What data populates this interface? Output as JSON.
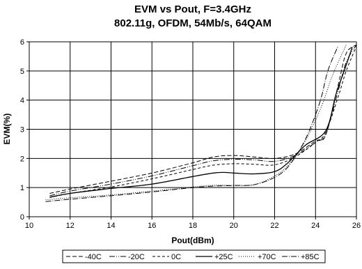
{
  "chart_data": {
    "type": "line",
    "title": "EVM vs Pout, F=3.4GHz",
    "subtitle": "802.11g, OFDM, 54Mb/s, 64QAM",
    "xlabel": "Pout(dBm)",
    "ylabel": "EVM(%)",
    "xlim": [
      10,
      26
    ],
    "ylim": [
      0,
      6
    ],
    "xticks": [
      "10",
      "12",
      "14",
      "16",
      "18",
      "20",
      "22",
      "24",
      "26"
    ],
    "yticks": [
      "0",
      "1",
      "2",
      "3",
      "4",
      "5",
      "6"
    ],
    "grid": true,
    "legend_position": "bottom",
    "series": [
      {
        "name": "-40C",
        "dash": "6,3",
        "color": "#000000",
        "points": [
          [
            11,
            0.8
          ],
          [
            12,
            0.95
          ],
          [
            14,
            1.22
          ],
          [
            16,
            1.5
          ],
          [
            18,
            1.85
          ],
          [
            19,
            2.05
          ],
          [
            20,
            2.1
          ],
          [
            21,
            2.05
          ],
          [
            22,
            2.0
          ],
          [
            23,
            2.15
          ],
          [
            24,
            2.6
          ],
          [
            24.5,
            2.8
          ],
          [
            25.1,
            4.5
          ],
          [
            25.5,
            5.6
          ],
          [
            26,
            5.9
          ]
        ]
      },
      {
        "name": "-20C",
        "dash": "8,2,1,2,1,2",
        "color": "#000000",
        "points": [
          [
            11,
            0.72
          ],
          [
            12,
            0.88
          ],
          [
            14,
            1.12
          ],
          [
            16,
            1.4
          ],
          [
            18,
            1.75
          ],
          [
            19,
            1.92
          ],
          [
            20,
            1.97
          ],
          [
            21,
            1.95
          ],
          [
            22,
            1.9
          ],
          [
            23,
            2.1
          ],
          [
            24,
            2.55
          ],
          [
            24.5,
            2.85
          ],
          [
            25.1,
            4.3
          ],
          [
            25.5,
            5.3
          ],
          [
            26,
            5.9
          ]
        ]
      },
      {
        "name": "0C",
        "dash": "4,3",
        "color": "#000000",
        "points": [
          [
            11,
            0.66
          ],
          [
            12,
            0.8
          ],
          [
            14,
            1.02
          ],
          [
            16,
            1.3
          ],
          [
            18,
            1.62
          ],
          [
            19,
            1.77
          ],
          [
            20,
            1.82
          ],
          [
            21,
            1.8
          ],
          [
            22,
            1.78
          ],
          [
            23,
            2.05
          ],
          [
            24,
            2.55
          ],
          [
            24.5,
            2.9
          ],
          [
            25.1,
            4.1
          ],
          [
            25.5,
            5.0
          ],
          [
            26,
            5.85
          ]
        ]
      },
      {
        "name": "+25C",
        "dash": "",
        "color": "#000000",
        "points": [
          [
            11,
            0.67
          ],
          [
            12,
            0.8
          ],
          [
            14,
            0.97
          ],
          [
            16,
            1.12
          ],
          [
            18,
            1.38
          ],
          [
            19,
            1.5
          ],
          [
            19.5,
            1.52
          ],
          [
            20,
            1.5
          ],
          [
            21,
            1.47
          ],
          [
            22,
            1.55
          ],
          [
            22.6,
            1.82
          ],
          [
            23.5,
            2.45
          ],
          [
            24.5,
            2.95
          ],
          [
            25,
            4.2
          ],
          [
            25.4,
            5.0
          ],
          [
            25.8,
            5.82
          ]
        ]
      },
      {
        "name": "+70C",
        "dash": "1,2",
        "color": "#000000",
        "points": [
          [
            10.8,
            0.58
          ],
          [
            12,
            0.65
          ],
          [
            14,
            0.75
          ],
          [
            16,
            0.88
          ],
          [
            18,
            1.02
          ],
          [
            19,
            1.08
          ],
          [
            20,
            1.08
          ],
          [
            21,
            1.1
          ],
          [
            22,
            1.4
          ],
          [
            22.7,
            1.8
          ],
          [
            23.5,
            2.6
          ],
          [
            24.3,
            3.8
          ],
          [
            24.8,
            4.8
          ],
          [
            25.5,
            5.9
          ]
        ]
      },
      {
        "name": "+85C",
        "dash": "8,2,1,2",
        "color": "#000000",
        "points": [
          [
            10.8,
            0.52
          ],
          [
            12,
            0.6
          ],
          [
            14,
            0.72
          ],
          [
            16,
            0.85
          ],
          [
            18,
            1.0
          ],
          [
            19,
            1.05
          ],
          [
            20,
            1.07
          ],
          [
            21,
            1.1
          ],
          [
            22,
            1.35
          ],
          [
            22.7,
            1.75
          ],
          [
            23.5,
            2.65
          ],
          [
            24.2,
            3.9
          ],
          [
            24.6,
            5.0
          ],
          [
            25.1,
            5.85
          ]
        ]
      }
    ]
  }
}
